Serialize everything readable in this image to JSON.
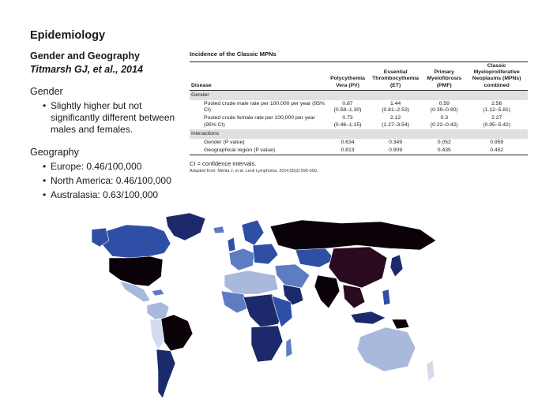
{
  "slide": {
    "title": "Epidemiology"
  },
  "left": {
    "subheading": "Gender and Geography",
    "citation": "Titmarsh GJ, et al., 2014",
    "gender": {
      "heading": "Gender",
      "bullets": [
        "Slightly higher but not significantly different between males and females."
      ]
    },
    "geography": {
      "heading": "Geography",
      "bullets": [
        "Europe: 0.46/100,000",
        "North America: 0.46/100,000",
        "Australasia: 0.63/100,000"
      ]
    }
  },
  "table": {
    "title": "Incidence of the Classic MPNs",
    "headers": [
      "Disease",
      "Polycythemia Vera (PV)",
      "Essential Thrombocythemia (ET)",
      "Primary Myelofibrosis (PMF)",
      "Classic Myeloproliferative Neoplasms (MPNs) combined"
    ],
    "sections": [
      {
        "label": "Gender",
        "rows": [
          {
            "label": "Pooled crude male rate per 100,000 per year (95% CI)",
            "values": [
              "0.87",
              "1.44",
              "0.59",
              "2.56"
            ],
            "ci": [
              "(0.58–1.30)",
              "(0.81–2.53)",
              "(0.39–0.90)",
              "(1.12–5.81)"
            ]
          },
          {
            "label": "Pooled crude female rate per 100,000 per year (95% CI)",
            "values": [
              "0.73",
              "2.12",
              "0.3",
              "2.27"
            ],
            "ci": [
              "(0.46–1.15)",
              "(1.27–3.54)",
              "(0.22–0.42)",
              "(0.95–5.42)"
            ]
          }
        ]
      },
      {
        "label": "Interactions",
        "rows": [
          {
            "label": "Gender (P value)",
            "values": [
              "0.634",
              "0.349",
              "0.052",
              "0.959"
            ],
            "ci": [
              "",
              "",
              "",
              ""
            ]
          },
          {
            "label": "Geographical region (P value)",
            "values": [
              "0.813",
              "0.909",
              "0.435",
              "0.452"
            ],
            "ci": [
              "",
              "",
              "",
              ""
            ]
          }
        ]
      }
    ],
    "footnote": "CI = confidence intervals.",
    "source": "Adapted from: Mehta J, et al. Leuk Lymphoma. 2014;55(3):595-600."
  },
  "map": {
    "colors": {
      "black": "#0a0208",
      "dark_navy": "#1c2a6b",
      "blue": "#2f4fa6",
      "mid_blue": "#5d7cc2",
      "light_blue": "#a9b9dc",
      "pale": "#d4dbee",
      "plum": "#2a0a1f"
    }
  }
}
